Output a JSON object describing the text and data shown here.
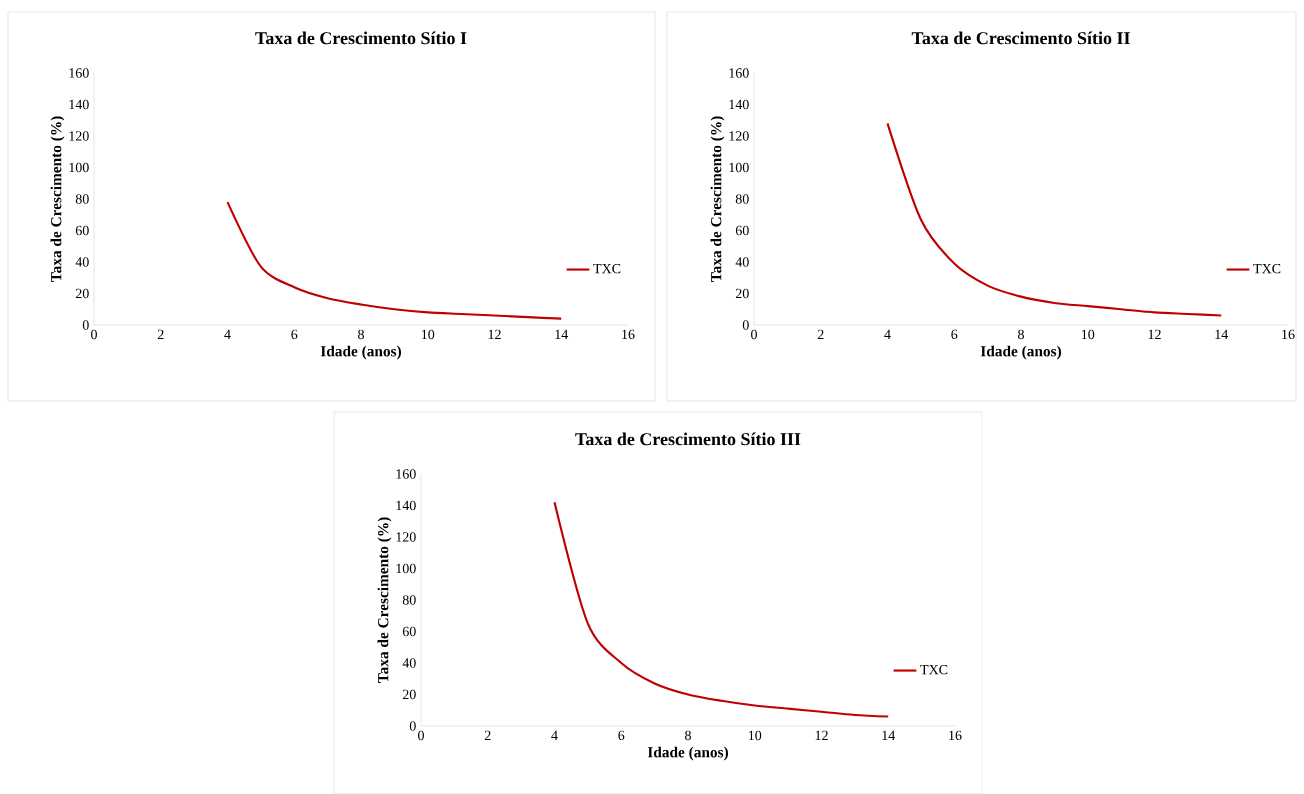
{
  "chart_data": [
    {
      "type": "line",
      "title": "Taxa de Crescimento Sítio I",
      "xlabel": "Idade (anos)",
      "ylabel": "Taxa de Crescimento (%)",
      "x": [
        4,
        5,
        6,
        7,
        8,
        9,
        10,
        11,
        12,
        13,
        14
      ],
      "series": [
        {
          "name": "TXC",
          "color": "#c00000",
          "values": [
            78,
            37,
            24,
            17,
            13,
            10,
            8,
            7,
            6,
            5,
            4
          ]
        }
      ],
      "xlim": [
        0,
        16
      ],
      "ylim": [
        0,
        160
      ],
      "xticks": [
        0,
        2,
        4,
        6,
        8,
        10,
        12,
        14,
        16
      ],
      "yticks": [
        0,
        20,
        40,
        60,
        80,
        100,
        120,
        140,
        160
      ],
      "legend": "right"
    },
    {
      "type": "line",
      "title": "Taxa de Crescimento Sítio II",
      "xlabel": "Idade (anos)",
      "ylabel": "Taxa de Crescimento (%)",
      "x": [
        4,
        5,
        6,
        7,
        8,
        9,
        10,
        11,
        12,
        13,
        14
      ],
      "series": [
        {
          "name": "TXC",
          "color": "#c00000",
          "values": [
            128,
            67,
            39,
            25,
            18,
            14,
            12,
            10,
            8,
            7,
            6
          ]
        }
      ],
      "xlim": [
        0,
        16
      ],
      "ylim": [
        0,
        160
      ],
      "xticks": [
        0,
        2,
        4,
        6,
        8,
        10,
        12,
        14,
        16
      ],
      "yticks": [
        0,
        20,
        40,
        60,
        80,
        100,
        120,
        140,
        160
      ],
      "legend": "right"
    },
    {
      "type": "line",
      "title": "Taxa de Crescimento Sítio III",
      "xlabel": "Idade (anos)",
      "ylabel": "Taxa de Crescimento (%)",
      "x": [
        4,
        5,
        6,
        7,
        8,
        9,
        10,
        11,
        12,
        13,
        14
      ],
      "series": [
        {
          "name": "TXC",
          "color": "#c00000",
          "values": [
            142,
            65,
            40,
            27,
            20,
            16,
            13,
            11,
            9,
            7,
            6
          ]
        }
      ],
      "xlim": [
        0,
        16
      ],
      "ylim": [
        0,
        160
      ],
      "xticks": [
        0,
        2,
        4,
        6,
        8,
        10,
        12,
        14,
        16
      ],
      "yticks": [
        0,
        20,
        40,
        60,
        80,
        100,
        120,
        140,
        160
      ],
      "legend": "right"
    }
  ]
}
